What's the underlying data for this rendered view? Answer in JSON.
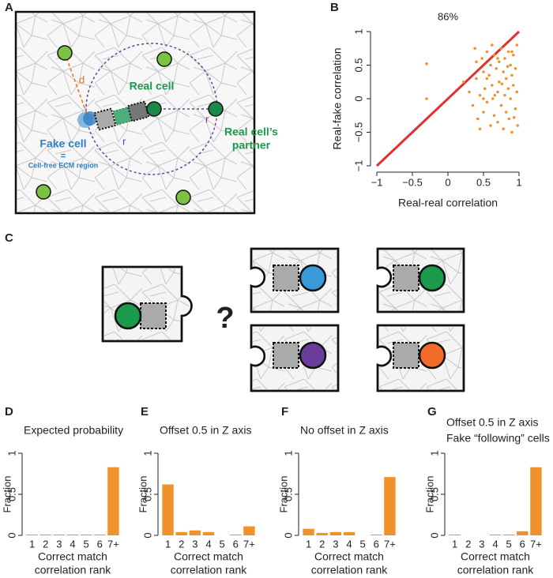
{
  "panel_a": {
    "label": "A",
    "d": "d",
    "real_cell": "Real cell",
    "r1": "r",
    "r2": "r",
    "fake_cell": "Fake cell",
    "equals": "=",
    "ecm": "Cell-free ECM region",
    "partner": [
      "Real cell’s",
      "partner"
    ]
  },
  "panel_c": {
    "label": "C",
    "question": "?"
  },
  "chart_data": [
    {
      "type": "scatter",
      "panel": "B",
      "title": "86%",
      "xlabel": "Real-real correlation",
      "ylabel": "Real-fake correlation",
      "color": "#f0922b",
      "diagonal_color": "#e03030",
      "xlim": [
        -1,
        1
      ],
      "ylim": [
        -1,
        1
      ],
      "xticks": [
        {
          "value": -1,
          "label": "−1"
        },
        {
          "value": -0.5,
          "label": "−0.5"
        },
        0,
        0.5,
        1
      ],
      "yticks": [
        {
          "value": -1,
          "label": "−1"
        },
        {
          "value": -0.5,
          "label": "−0.5"
        },
        0,
        0.5,
        1
      ],
      "x": [
        -0.3,
        -0.3,
        0.22,
        0.3,
        0.35,
        0.38,
        0.4,
        0.42,
        0.45,
        0.48,
        0.5,
        0.5,
        0.52,
        0.55,
        0.55,
        0.58,
        0.6,
        0.6,
        0.62,
        0.63,
        0.65,
        0.65,
        0.68,
        0.7,
        0.7,
        0.72,
        0.72,
        0.75,
        0.75,
        0.78,
        0.78,
        0.8,
        0.8,
        0.82,
        0.82,
        0.85,
        0.85,
        0.86,
        0.88,
        0.88,
        0.9,
        0.9,
        0.92,
        0.92,
        0.95,
        0.95,
        0.97,
        0.97,
        0.98,
        0.4,
        0.55,
        0.62,
        0.7,
        0.84,
        0.9,
        0.93,
        0.66,
        0.76,
        0.5,
        0.45
      ],
      "values": [
        0.52,
        0.0,
        0.25,
        0.1,
        -0.1,
        0.75,
        0.3,
        -0.3,
        0.05,
        0.6,
        -0.2,
        0.4,
        0.15,
        0.7,
        -0.05,
        0.35,
        0.5,
        -0.4,
        0.2,
        0.0,
        0.65,
        -0.25,
        0.45,
        0.1,
        -0.35,
        0.55,
        0.25,
        0.75,
        -0.1,
        0.4,
        -0.45,
        0.05,
        0.6,
        0.3,
        -0.2,
        0.7,
        0.15,
        -0.3,
        0.5,
        0.0,
        0.35,
        -0.5,
        0.65,
        0.2,
        0.45,
        -0.15,
        0.8,
        0.1,
        -0.4,
        0.55,
        0.3,
        0.8,
        0.6,
        0.48,
        0.7,
        -0.28,
        0.05,
        0.22,
        0.0,
        -0.45
      ]
    },
    {
      "type": "bar",
      "panel": "D",
      "title": [
        "Expected probability"
      ],
      "categories": [
        "1",
        "2",
        "3",
        "4",
        "5",
        "6",
        "7+"
      ],
      "values": [
        0.01,
        0.01,
        0.01,
        0.01,
        0.01,
        0.01,
        0.83
      ],
      "color": "#f0922b",
      "ylabel": "Fraction",
      "xlabel": [
        "Correct match",
        "correlation rank"
      ],
      "ylim": [
        0,
        1
      ],
      "yticks": [
        0,
        0.5,
        1
      ]
    },
    {
      "type": "bar",
      "panel": "E",
      "title": [
        "Offset 0.5 in Z axis"
      ],
      "categories": [
        "1",
        "2",
        "3",
        "4",
        "5",
        "6",
        "7+"
      ],
      "values": [
        0.62,
        0.04,
        0.06,
        0.04,
        0,
        0.01,
        0.11
      ],
      "color": "#f0922b",
      "ylabel": "Fraction",
      "xlabel": [
        "Correct match",
        "correlation rank"
      ],
      "ylim": [
        0,
        1
      ],
      "yticks": [
        0,
        0.5,
        1
      ]
    },
    {
      "type": "bar",
      "panel": "F",
      "title": [
        "No offset in Z axis"
      ],
      "categories": [
        "1",
        "2",
        "3",
        "4",
        "5",
        "6",
        "7+"
      ],
      "values": [
        0.08,
        0.03,
        0.04,
        0.04,
        0,
        0.01,
        0.71
      ],
      "color": "#f0922b",
      "ylabel": "Fraction",
      "xlabel": [
        "Correct match",
        "correlation rank"
      ],
      "ylim": [
        0,
        1
      ],
      "yticks": [
        0,
        0.5,
        1
      ]
    },
    {
      "type": "bar",
      "panel": "G",
      "title": [
        "Offset 0.5 in Z axis",
        "Fake “following” cells"
      ],
      "categories": [
        "1",
        "2",
        "3",
        "4",
        "5",
        "6",
        "7+"
      ],
      "values": [
        0.01,
        0,
        0,
        0.01,
        0.01,
        0.05,
        0.83
      ],
      "color": "#f0922b",
      "ylabel": "Fraction",
      "xlabel": [
        "Correct match",
        "correlation rank"
      ],
      "ylim": [
        0,
        1
      ],
      "yticks": [
        0,
        0.5,
        1
      ]
    }
  ]
}
